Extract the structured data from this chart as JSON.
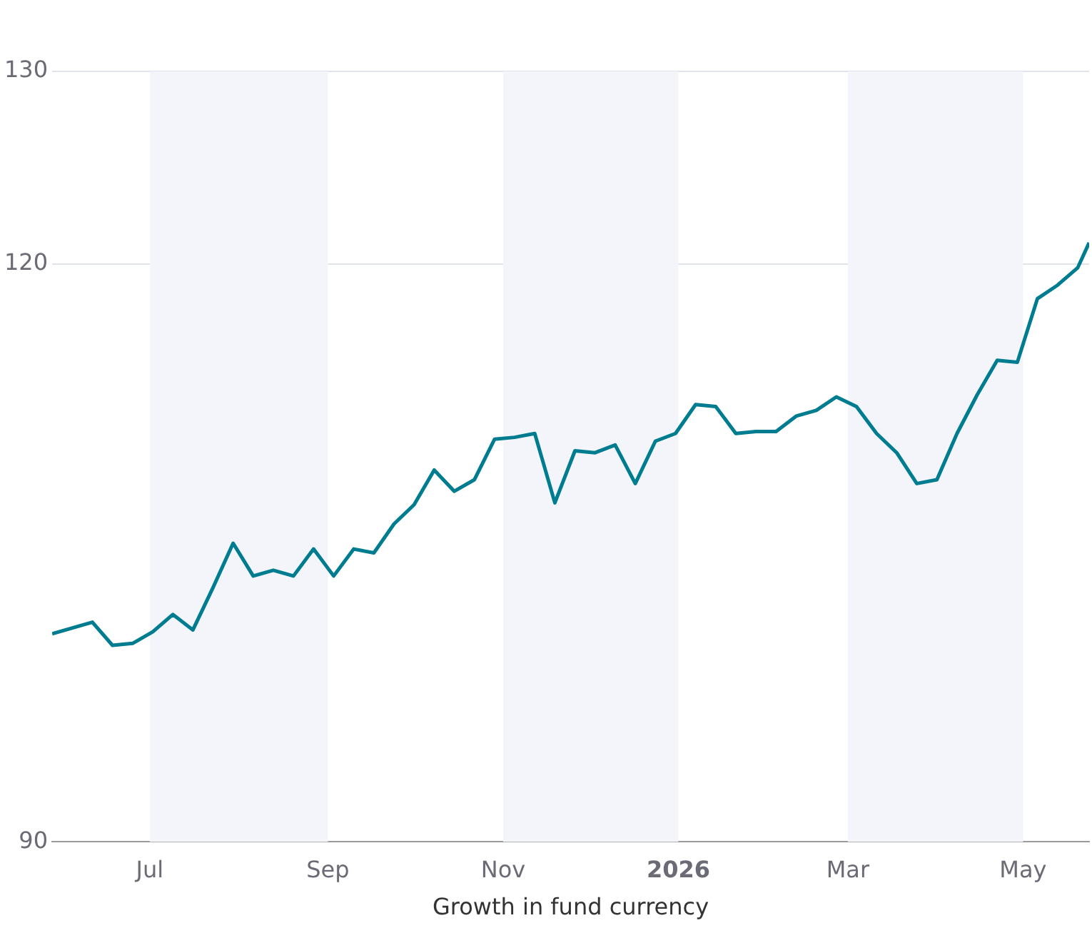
{
  "chart_data": {
    "type": "line",
    "xlabel": "Growth in fund currency",
    "x": [
      "2025-05-28",
      "2025-06-11",
      "2025-06-18",
      "2025-06-25",
      "2025-07-02",
      "2025-07-09",
      "2025-07-16",
      "2025-07-23",
      "2025-07-30",
      "2025-08-06",
      "2025-08-13",
      "2025-08-20",
      "2025-08-27",
      "2025-09-03",
      "2025-09-10",
      "2025-09-17",
      "2025-09-24",
      "2025-10-01",
      "2025-10-08",
      "2025-10-15",
      "2025-10-22",
      "2025-10-29",
      "2025-11-05",
      "2025-11-12",
      "2025-11-19",
      "2025-11-26",
      "2025-12-03",
      "2025-12-10",
      "2025-12-17",
      "2025-12-24",
      "2025-12-31",
      "2026-01-07",
      "2026-01-14",
      "2026-01-21",
      "2026-01-28",
      "2026-02-04",
      "2026-02-11",
      "2026-02-18",
      "2026-02-25",
      "2026-03-04",
      "2026-03-11",
      "2026-03-18",
      "2026-03-25",
      "2026-04-01",
      "2026-04-08",
      "2026-04-15",
      "2026-04-22",
      "2026-04-29",
      "2026-05-06",
      "2026-05-13",
      "2026-05-20",
      "2026-05-24"
    ],
    "series": [
      {
        "color": "#007c91",
        "values": [
          100.8,
          101.4,
          100.2,
          100.3,
          100.9,
          101.8,
          101.0,
          103.2,
          105.5,
          103.8,
          104.1,
          103.8,
          105.2,
          103.8,
          105.2,
          105.0,
          106.5,
          107.5,
          109.3,
          108.2,
          108.8,
          110.9,
          111.0,
          111.2,
          107.6,
          110.3,
          110.2,
          110.6,
          108.6,
          110.8,
          111.2,
          112.7,
          112.6,
          111.2,
          111.3,
          111.3,
          112.1,
          112.4,
          113.1,
          112.6,
          111.2,
          110.2,
          108.6,
          108.8,
          111.2,
          113.2,
          115.0,
          114.9,
          118.2,
          118.9,
          119.8,
          121.1
        ]
      }
    ],
    "xlim": [
      "2025-05-28",
      "2026-05-24"
    ],
    "xticks": [
      {
        "value": "2025-07-01",
        "label": "Jul"
      },
      {
        "value": "2025-09-01",
        "label": "Sep"
      },
      {
        "value": "2025-11-01",
        "label": "Nov"
      },
      {
        "value": "2026-01-01",
        "label": "2026"
      },
      {
        "value": "2026-03-01",
        "label": "Mar"
      },
      {
        "value": "2026-05-01",
        "label": "May"
      }
    ],
    "ylim": [
      90,
      130
    ],
    "yticks": [
      90,
      120,
      130
    ],
    "bands": [
      {
        "axis": "x",
        "from": "2025-07-01",
        "to": "2025-09-01",
        "color": "#f3f5fa"
      },
      {
        "axis": "x",
        "from": "2025-11-01",
        "to": "2026-01-01",
        "color": "#f3f5fa"
      },
      {
        "axis": "x",
        "from": "2026-03-01",
        "to": "2026-05-01",
        "color": "#f3f5fa"
      }
    ],
    "grid": "y",
    "marker": "none",
    "line_style": "solid",
    "legend": false
  }
}
